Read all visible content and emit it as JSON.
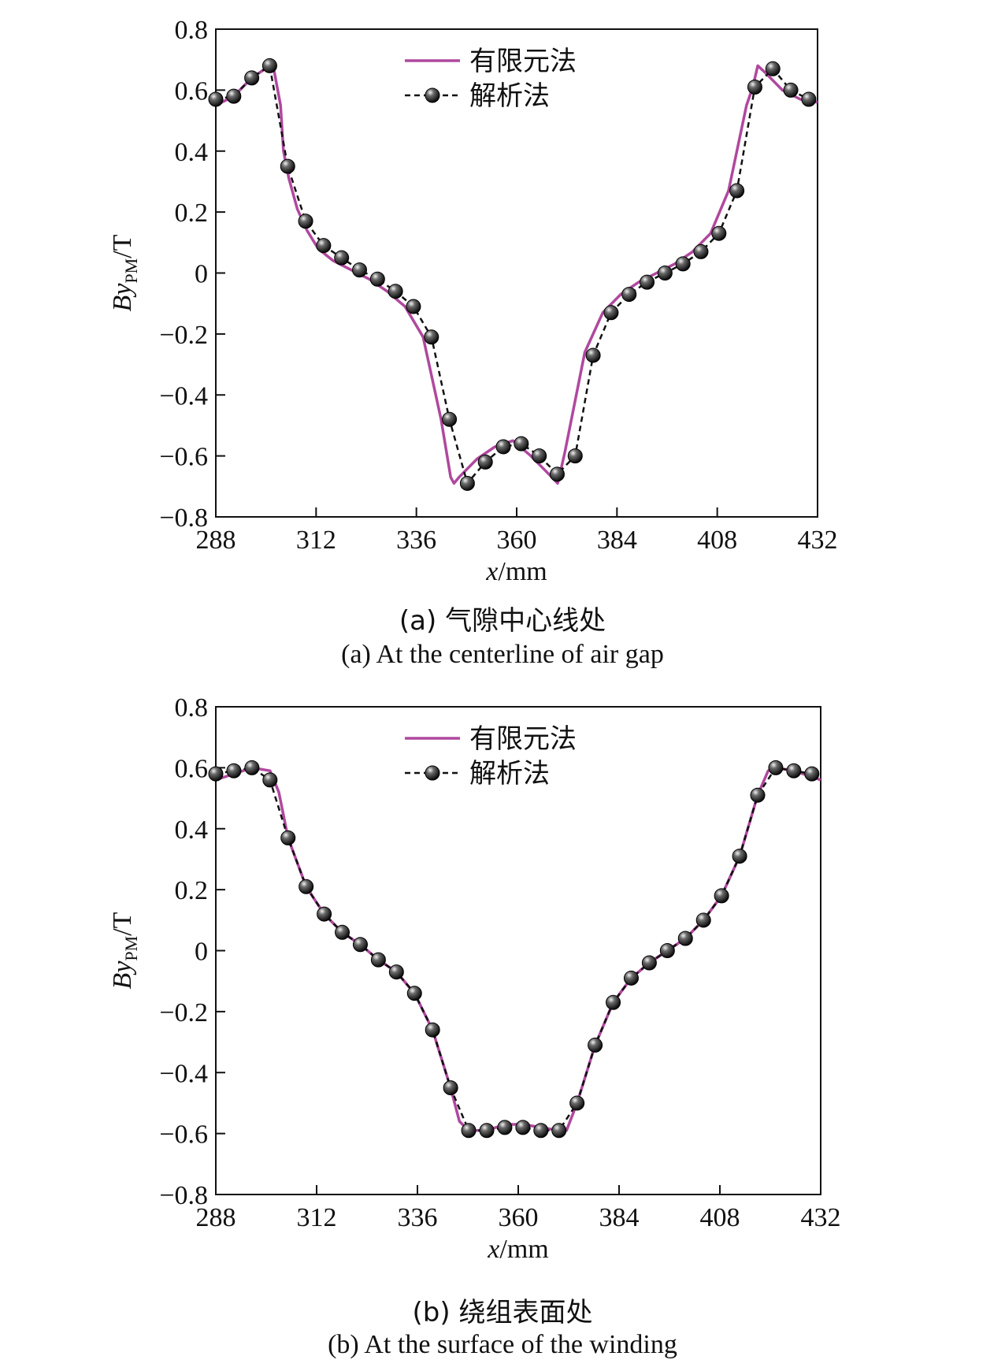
{
  "figure": {
    "panels": [
      {
        "caption_cn": "(a) 气隙中心线处",
        "caption_en": "(a) At the centerline of air gap"
      },
      {
        "caption_cn": "(b) 绕组表面处",
        "caption_en": "(b) At the surface of the winding"
      }
    ]
  },
  "chart_data": [
    {
      "type": "line",
      "xlabel": "x/mm",
      "ylabel": "By_PM/T",
      "xlim": [
        288,
        432
      ],
      "ylim": [
        -0.8,
        0.8
      ],
      "xticks": [
        288,
        312,
        336,
        360,
        384,
        408,
        432
      ],
      "yticks": [
        0.8,
        0.6,
        0.4,
        0.2,
        0,
        -0.2,
        -0.4,
        -0.6,
        -0.8
      ],
      "ytick_labels": [
        "0.8",
        "0.6",
        "0.4",
        "0.2",
        "0",
        "−0.2",
        "−0.4",
        "−0.6",
        "−0.8"
      ],
      "legend": {
        "position": "top-center",
        "entries": [
          "有限元法",
          "解析法"
        ]
      },
      "series": [
        {
          "name": "有限元法",
          "style": "solid",
          "color": "#b0489e",
          "x": [
            288,
            292.3,
            296.6,
            300.9,
            302,
            303.5,
            304.2,
            305.5,
            307.5,
            309.8,
            312.5,
            316.1,
            320.4,
            324.7,
            329.0,
            333.3,
            337.6,
            341.9,
            344.2,
            345.0,
            346.2,
            350.5,
            354.8,
            359.1,
            363.4,
            367.7,
            369.8,
            370.0,
            371.5,
            376.3,
            380.6,
            384.9,
            389.2,
            393.5,
            397.8,
            402.1,
            406.4,
            410.7,
            415.0,
            416.5,
            417.7,
            419.3,
            423.6,
            427.9,
            432
          ],
          "y": [
            0.55,
            0.58,
            0.64,
            0.68,
            0.66,
            0.55,
            0.4,
            0.31,
            0.21,
            0.14,
            0.08,
            0.04,
            0.01,
            -0.02,
            -0.06,
            -0.11,
            -0.21,
            -0.48,
            -0.67,
            -0.69,
            -0.67,
            -0.61,
            -0.57,
            -0.55,
            -0.6,
            -0.66,
            -0.69,
            -0.68,
            -0.59,
            -0.26,
            -0.13,
            -0.07,
            -0.03,
            0.0,
            0.03,
            0.07,
            0.13,
            0.27,
            0.55,
            0.61,
            0.68,
            0.66,
            0.6,
            0.57,
            0.56
          ]
        },
        {
          "name": "解析法",
          "style": "dashed-markers",
          "color": "#111111",
          "x": [
            288,
            292.3,
            296.6,
            300.9,
            305.2,
            309.5,
            313.8,
            318.1,
            322.4,
            326.7,
            331.0,
            335.3,
            339.6,
            343.9,
            348.2,
            352.5,
            356.8,
            361.1,
            365.4,
            369.7,
            374.0,
            378.3,
            382.6,
            386.9,
            391.2,
            395.5,
            399.8,
            404.1,
            408.4,
            412.7,
            417.0,
            421.3,
            425.6,
            429.9
          ],
          "y": [
            0.57,
            0.58,
            0.64,
            0.68,
            0.35,
            0.17,
            0.09,
            0.05,
            0.01,
            -0.02,
            -0.06,
            -0.11,
            -0.21,
            -0.48,
            -0.69,
            -0.62,
            -0.57,
            -0.56,
            -0.6,
            -0.66,
            -0.6,
            -0.27,
            -0.13,
            -0.07,
            -0.03,
            0.0,
            0.03,
            0.07,
            0.13,
            0.27,
            0.61,
            0.67,
            0.6,
            0.57
          ]
        }
      ]
    },
    {
      "type": "line",
      "xlabel": "x/mm",
      "ylabel": "By_PM/T",
      "xlim": [
        288,
        432
      ],
      "ylim": [
        -0.8,
        0.8
      ],
      "xticks": [
        288,
        312,
        336,
        360,
        384,
        408,
        432
      ],
      "yticks": [
        0.8,
        0.6,
        0.4,
        0.2,
        0,
        -0.2,
        -0.4,
        -0.6,
        -0.8
      ],
      "ytick_labels": [
        "0.8",
        "0.6",
        "0.4",
        "0.2",
        "0",
        "−0.2",
        "−0.4",
        "−0.6",
        "−0.8"
      ],
      "legend": {
        "position": "top-center",
        "entries": [
          "有限元法",
          "解析法"
        ]
      },
      "series": [
        {
          "name": "有限元法",
          "style": "solid",
          "color": "#b0489e",
          "x": [
            288,
            292.3,
            296.6,
            300.9,
            303.0,
            305.2,
            309.5,
            313.8,
            318.1,
            322.4,
            326.7,
            331.0,
            335.3,
            339.6,
            343.9,
            346.0,
            348.2,
            352.5,
            356.8,
            361.1,
            365.4,
            369.7,
            371.5,
            374.0,
            378.3,
            382.6,
            386.9,
            391.2,
            395.5,
            399.8,
            404.1,
            408.4,
            412.7,
            417.0,
            419.5,
            421.3,
            425.6,
            429.9,
            432
          ],
          "y": [
            0.56,
            0.58,
            0.6,
            0.59,
            0.52,
            0.37,
            0.21,
            0.12,
            0.06,
            0.02,
            -0.03,
            -0.07,
            -0.14,
            -0.26,
            -0.45,
            -0.56,
            -0.59,
            -0.59,
            -0.57,
            -0.57,
            -0.58,
            -0.59,
            -0.59,
            -0.5,
            -0.31,
            -0.17,
            -0.09,
            -0.04,
            0.0,
            0.04,
            0.1,
            0.18,
            0.31,
            0.51,
            0.59,
            0.6,
            0.59,
            0.57,
            0.56
          ]
        },
        {
          "name": "解析法",
          "style": "dashed-markers",
          "color": "#111111",
          "x": [
            288,
            292.3,
            296.6,
            300.9,
            305.2,
            309.5,
            313.8,
            318.1,
            322.4,
            326.7,
            331.0,
            335.3,
            339.6,
            343.9,
            348.2,
            352.5,
            356.8,
            361.1,
            365.4,
            369.7,
            374.0,
            378.3,
            382.6,
            386.9,
            391.2,
            395.5,
            399.8,
            404.1,
            408.4,
            412.7,
            417.0,
            421.3,
            425.6,
            429.9
          ],
          "y": [
            0.58,
            0.59,
            0.6,
            0.56,
            0.37,
            0.21,
            0.12,
            0.06,
            0.02,
            -0.03,
            -0.07,
            -0.14,
            -0.26,
            -0.45,
            -0.59,
            -0.59,
            -0.58,
            -0.58,
            -0.59,
            -0.59,
            -0.5,
            -0.31,
            -0.17,
            -0.09,
            -0.04,
            0.0,
            0.04,
            0.1,
            0.18,
            0.31,
            0.51,
            0.6,
            0.59,
            0.58
          ]
        }
      ]
    }
  ]
}
